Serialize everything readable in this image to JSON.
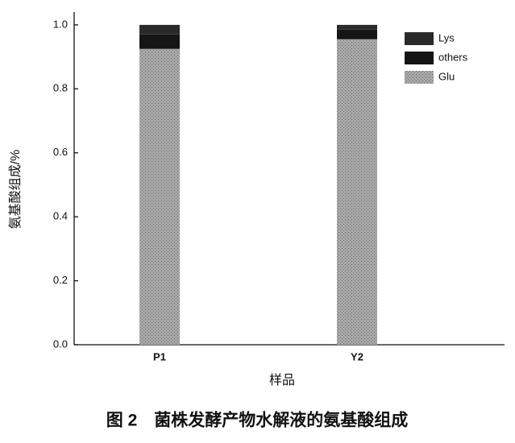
{
  "chart_data": {
    "type": "stacked_bar",
    "caption": "图 2　菌株发酵产物水解液的氨基酸组成",
    "x_label": "样品",
    "y_label": "氨基酸组成/%",
    "categories": [
      "P1",
      "Y2"
    ],
    "series": [
      {
        "name": "Glu",
        "color": "#9a9a9a",
        "values": [
          0.925,
          0.955
        ]
      },
      {
        "name": "others",
        "color": "#151515",
        "values": [
          0.045,
          0.03
        ]
      },
      {
        "name": "Lys",
        "color": "#2a2a2a",
        "values": [
          0.03,
          0.015
        ]
      }
    ],
    "ylim": [
      0,
      1.04
    ],
    "yticks": [
      {
        "value": 0,
        "label": "0.0"
      },
      0.2,
      0.4,
      0.6,
      0.8,
      {
        "value": 1,
        "label": "1.0"
      }
    ],
    "grid": false,
    "legend": "upper right"
  }
}
